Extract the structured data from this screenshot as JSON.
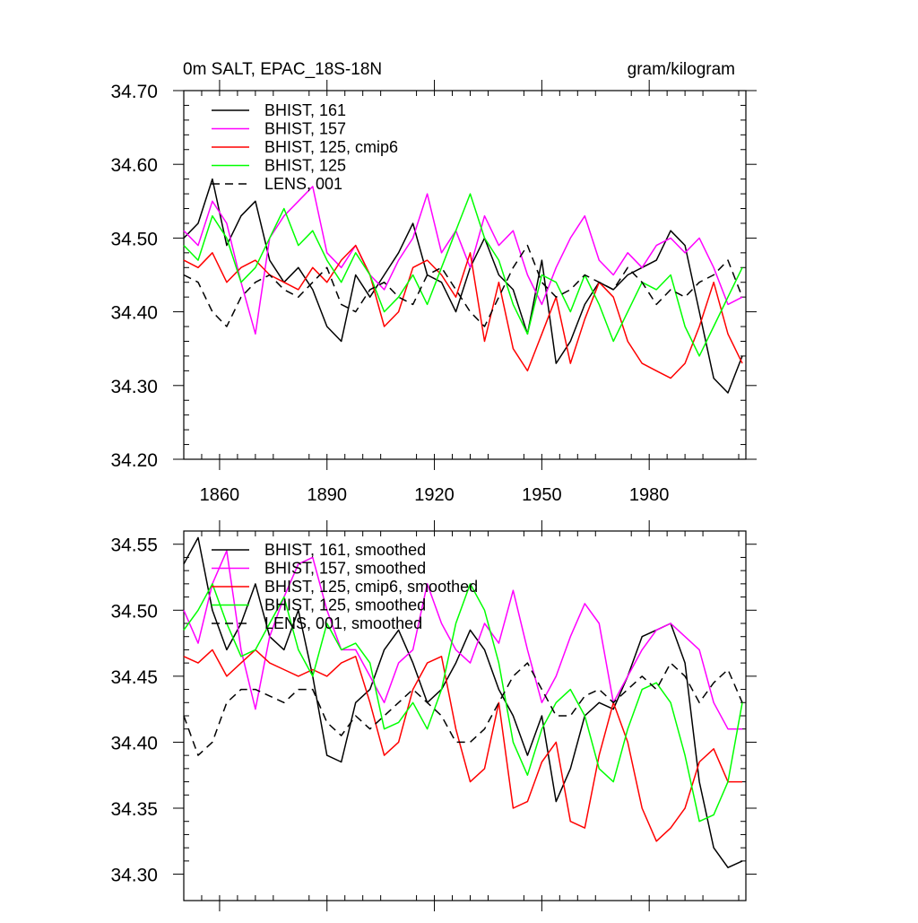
{
  "chart_data": [
    {
      "type": "line",
      "title": "0m SALT, EPAC_18S-18N",
      "units_label": "gram/kilogram",
      "xlabel": "",
      "ylabel": "",
      "xlim": [
        1850,
        2007
      ],
      "ylim": [
        34.2,
        34.7
      ],
      "x_ticks": [
        1860,
        1890,
        1920,
        1950,
        1980
      ],
      "x_tick_labels": [
        "1860",
        "1890",
        "1920",
        "1950",
        "1980"
      ],
      "y_ticks": [
        34.2,
        34.3,
        34.4,
        34.5,
        34.6,
        34.7
      ],
      "y_tick_labels": [
        "34.20",
        "34.30",
        "34.40",
        "34.50",
        "34.60",
        "34.70"
      ],
      "grid": false,
      "legend_position": "top-left",
      "x": [
        1850,
        1854,
        1858,
        1862,
        1866,
        1870,
        1874,
        1878,
        1882,
        1886,
        1890,
        1894,
        1898,
        1902,
        1906,
        1910,
        1914,
        1918,
        1922,
        1926,
        1930,
        1934,
        1938,
        1942,
        1946,
        1950,
        1954,
        1958,
        1962,
        1966,
        1970,
        1974,
        1978,
        1982,
        1986,
        1990,
        1994,
        1998,
        2002,
        2006
      ],
      "series": [
        {
          "name": "BHIST, 161",
          "color": "#000000",
          "dash": "solid",
          "values": [
            34.5,
            34.52,
            34.58,
            34.49,
            34.53,
            34.55,
            34.47,
            34.44,
            34.46,
            34.43,
            34.38,
            34.36,
            34.45,
            34.42,
            34.45,
            34.48,
            34.52,
            34.45,
            34.44,
            34.4,
            34.46,
            34.5,
            34.45,
            34.43,
            34.37,
            34.47,
            34.33,
            34.36,
            34.41,
            34.44,
            34.43,
            34.45,
            34.46,
            34.47,
            34.51,
            34.49,
            34.4,
            34.31,
            34.29,
            34.34
          ]
        },
        {
          "name": "BHIST, 157",
          "color": "#ff00ff",
          "dash": "solid",
          "values": [
            34.51,
            34.49,
            34.55,
            34.52,
            34.44,
            34.37,
            34.5,
            34.53,
            34.55,
            34.57,
            34.48,
            34.46,
            34.49,
            34.45,
            34.43,
            34.47,
            34.5,
            34.56,
            34.48,
            34.51,
            34.46,
            34.53,
            34.49,
            34.51,
            34.45,
            34.41,
            34.46,
            34.5,
            34.53,
            34.47,
            34.45,
            34.48,
            34.46,
            34.49,
            34.5,
            34.48,
            34.5,
            34.46,
            34.41,
            34.42
          ]
        },
        {
          "name": "BHIST, 125, cmip6",
          "color": "#ff0000",
          "dash": "solid",
          "values": [
            34.47,
            34.46,
            34.48,
            34.44,
            34.46,
            34.47,
            34.45,
            34.44,
            34.43,
            34.46,
            34.44,
            34.47,
            34.49,
            34.45,
            34.38,
            34.4,
            34.46,
            34.47,
            34.45,
            34.42,
            34.48,
            34.36,
            34.44,
            34.35,
            34.32,
            34.37,
            34.42,
            34.33,
            34.39,
            34.44,
            34.42,
            34.36,
            34.33,
            34.32,
            34.31,
            34.33,
            34.38,
            34.44,
            34.37,
            34.33
          ]
        },
        {
          "name": "BHIST, 125",
          "color": "#00ff00",
          "dash": "solid",
          "values": [
            34.49,
            34.47,
            34.53,
            34.5,
            34.44,
            34.46,
            34.5,
            34.54,
            34.49,
            34.51,
            34.47,
            34.44,
            34.48,
            34.45,
            34.4,
            34.42,
            34.45,
            34.41,
            34.46,
            34.51,
            34.56,
            34.5,
            34.47,
            34.41,
            34.37,
            34.45,
            34.44,
            34.4,
            34.45,
            34.41,
            34.36,
            34.4,
            34.44,
            34.43,
            34.45,
            34.38,
            34.34,
            34.38,
            34.42,
            34.46
          ]
        },
        {
          "name": "LENS, 001",
          "color": "#000000",
          "dash": "dashed",
          "values": [
            34.45,
            34.44,
            34.4,
            34.38,
            34.42,
            34.44,
            34.45,
            34.43,
            34.42,
            34.44,
            34.46,
            34.41,
            34.4,
            34.43,
            34.44,
            34.42,
            34.41,
            34.45,
            34.46,
            34.43,
            34.4,
            34.38,
            34.42,
            34.46,
            34.49,
            34.44,
            34.42,
            34.43,
            34.45,
            34.44,
            34.43,
            34.46,
            34.44,
            34.41,
            34.43,
            34.42,
            34.44,
            34.45,
            34.47,
            34.42
          ]
        }
      ]
    },
    {
      "type": "line",
      "title": "",
      "xlabel": "",
      "ylabel": "",
      "xlim": [
        1850,
        2007
      ],
      "ylim": [
        34.28,
        34.56
      ],
      "x_ticks": [
        1860,
        1890,
        1920,
        1950,
        1980
      ],
      "x_tick_labels": [],
      "y_ticks": [
        34.3,
        34.35,
        34.4,
        34.45,
        34.5,
        34.55
      ],
      "y_tick_labels": [
        "34.30",
        "34.35",
        "34.40",
        "34.45",
        "34.50",
        "34.55"
      ],
      "grid": false,
      "legend_position": "top-left",
      "x": [
        1850,
        1854,
        1858,
        1862,
        1866,
        1870,
        1874,
        1878,
        1882,
        1886,
        1890,
        1894,
        1898,
        1902,
        1906,
        1910,
        1914,
        1918,
        1922,
        1926,
        1930,
        1934,
        1938,
        1942,
        1946,
        1950,
        1954,
        1958,
        1962,
        1966,
        1970,
        1974,
        1978,
        1982,
        1986,
        1990,
        1994,
        1998,
        2002,
        2006
      ],
      "series": [
        {
          "name": "BHIST, 161, smoothed",
          "color": "#000000",
          "dash": "solid",
          "values": [
            34.535,
            34.555,
            34.5,
            34.47,
            34.49,
            34.52,
            34.48,
            34.47,
            34.5,
            34.45,
            34.39,
            34.385,
            34.43,
            34.44,
            34.47,
            34.485,
            34.46,
            34.43,
            34.44,
            34.46,
            34.485,
            34.47,
            34.44,
            34.42,
            34.39,
            34.42,
            34.355,
            34.38,
            34.42,
            34.43,
            34.425,
            34.45,
            34.48,
            34.485,
            34.49,
            34.46,
            34.37,
            34.32,
            34.305,
            34.31
          ]
        },
        {
          "name": "BHIST, 157, smoothed",
          "color": "#ff00ff",
          "dash": "solid",
          "values": [
            34.5,
            34.475,
            34.52,
            34.545,
            34.47,
            34.425,
            34.48,
            34.51,
            34.535,
            34.54,
            34.5,
            34.47,
            34.47,
            34.45,
            34.43,
            34.46,
            34.47,
            34.52,
            34.49,
            34.47,
            34.46,
            34.49,
            34.475,
            34.515,
            34.47,
            34.43,
            34.45,
            34.48,
            34.505,
            34.49,
            34.43,
            34.45,
            34.47,
            34.485,
            34.49,
            34.48,
            34.47,
            34.43,
            34.41,
            34.41
          ]
        },
        {
          "name": "BHIST, 125, cmip6, smoothed",
          "color": "#ff0000",
          "dash": "solid",
          "values": [
            34.465,
            34.46,
            34.47,
            34.45,
            34.46,
            34.47,
            34.46,
            34.455,
            34.45,
            34.455,
            34.45,
            34.46,
            34.465,
            34.43,
            34.39,
            34.4,
            34.44,
            34.46,
            34.465,
            34.41,
            34.37,
            34.38,
            34.43,
            34.35,
            34.355,
            34.385,
            34.4,
            34.34,
            34.335,
            34.39,
            34.43,
            34.4,
            34.35,
            34.325,
            34.335,
            34.35,
            34.385,
            34.395,
            34.37,
            34.37
          ]
        },
        {
          "name": "BHIST, 125, smoothed",
          "color": "#00ff00",
          "dash": "solid",
          "values": [
            34.485,
            34.5,
            34.52,
            34.49,
            34.465,
            34.47,
            34.49,
            34.51,
            34.47,
            34.45,
            34.49,
            34.47,
            34.475,
            34.46,
            34.41,
            34.415,
            34.43,
            34.41,
            34.44,
            34.49,
            34.52,
            34.5,
            34.46,
            34.4,
            34.375,
            34.41,
            34.43,
            34.44,
            34.42,
            34.38,
            34.37,
            34.41,
            34.44,
            34.445,
            34.43,
            34.39,
            34.34,
            34.345,
            34.37,
            34.43
          ]
        },
        {
          "name": "LENS, 001, smoothed",
          "color": "#000000",
          "dash": "dashed",
          "values": [
            34.42,
            34.39,
            34.4,
            34.43,
            34.44,
            34.44,
            34.435,
            34.43,
            34.44,
            34.44,
            34.415,
            34.405,
            34.42,
            34.41,
            34.42,
            34.43,
            34.44,
            34.43,
            34.42,
            34.4,
            34.4,
            34.41,
            34.43,
            34.45,
            34.46,
            34.44,
            34.42,
            34.42,
            34.435,
            34.44,
            34.43,
            34.44,
            34.45,
            34.44,
            34.46,
            34.45,
            34.43,
            34.445,
            34.455,
            34.43
          ]
        }
      ]
    }
  ]
}
